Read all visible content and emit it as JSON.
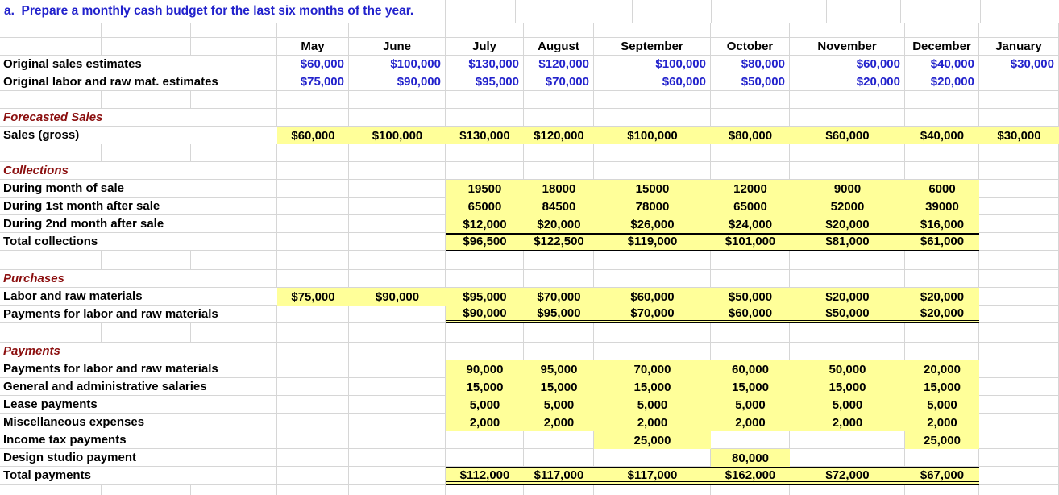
{
  "title": "a.  Prepare a monthly cash budget for the last six months of the year.",
  "months": [
    "May",
    "June",
    "July",
    "August",
    "September",
    "October",
    "November",
    "December",
    "January"
  ],
  "colors": {
    "title_blue": "#2222CC",
    "value_blue": "#2222CC",
    "section_red": "#8B0F0F",
    "highlight_yellow": "#FFFF99",
    "gridline_gray": "#D6D6D6"
  },
  "rows": {
    "original_sales": {
      "label": "Original sales estimates",
      "cells": [
        "$60,000",
        "$100,000",
        "$130,000",
        "$120,000",
        "$100,000",
        "$80,000",
        "$60,000",
        "$40,000",
        "$30,000"
      ]
    },
    "original_labor": {
      "label": "Original labor and raw mat. estimates",
      "cells": [
        "$75,000",
        "$90,000",
        "$95,000",
        "$70,000",
        "$60,000",
        "$50,000",
        "$20,000",
        "$20,000",
        ""
      ]
    },
    "forecasted_sales_header": {
      "label": "Forecasted Sales"
    },
    "sales_gross": {
      "label": "Sales (gross)",
      "cells": [
        "$60,000",
        "$100,000",
        "$130,000",
        "$120,000",
        "$100,000",
        "$80,000",
        "$60,000",
        "$40,000",
        "$30,000"
      ]
    },
    "collections_header": {
      "label": "Collections"
    },
    "during_month": {
      "label": "During month of sale",
      "cells": [
        "",
        "",
        "19500",
        "18000",
        "15000",
        "12000",
        "9000",
        "6000",
        ""
      ]
    },
    "during_1st": {
      "label": "During 1st month after sale",
      "cells": [
        "",
        "",
        "65000",
        "84500",
        "78000",
        "65000",
        "52000",
        "39000",
        ""
      ]
    },
    "during_2nd": {
      "label": "During 2nd month after sale",
      "cells": [
        "",
        "",
        "$12,000",
        "$20,000",
        "$26,000",
        "$24,000",
        "$20,000",
        "$16,000",
        ""
      ]
    },
    "total_collections": {
      "label": "Total collections",
      "cells": [
        "",
        "",
        "$96,500",
        "$122,500",
        "$119,000",
        "$101,000",
        "$81,000",
        "$61,000",
        ""
      ]
    },
    "purchases_header": {
      "label": "Purchases"
    },
    "labor_raw": {
      "label": "Labor and raw materials",
      "cells": [
        "$75,000",
        "$90,000",
        "$95,000",
        "$70,000",
        "$60,000",
        "$50,000",
        "$20,000",
        "$20,000",
        ""
      ]
    },
    "payments_labor_purchases": {
      "label": "Payments for labor and raw materials",
      "cells": [
        "",
        "",
        "$90,000",
        "$95,000",
        "$70,000",
        "$60,000",
        "$50,000",
        "$20,000",
        ""
      ]
    },
    "payments_header": {
      "label": "Payments"
    },
    "payments_labor": {
      "label": "Payments for labor and raw materials",
      "cells": [
        "",
        "",
        "90,000",
        "95,000",
        "70,000",
        "60,000",
        "50,000",
        "20,000",
        ""
      ]
    },
    "ga_salaries": {
      "label": "General and administrative salaries",
      "cells": [
        "",
        "",
        "15,000",
        "15,000",
        "15,000",
        "15,000",
        "15,000",
        "15,000",
        ""
      ]
    },
    "lease": {
      "label": "Lease payments",
      "cells": [
        "",
        "",
        "5,000",
        "5,000",
        "5,000",
        "5,000",
        "5,000",
        "5,000",
        ""
      ]
    },
    "misc": {
      "label": "Miscellaneous expenses",
      "cells": [
        "",
        "",
        "2,000",
        "2,000",
        "2,000",
        "2,000",
        "2,000",
        "2,000",
        ""
      ]
    },
    "income_tax": {
      "label": "Income tax payments",
      "cells": [
        "",
        "",
        "",
        "",
        "25,000",
        "",
        "",
        "25,000",
        ""
      ]
    },
    "design_studio": {
      "label": "Design studio payment",
      "cells": [
        "",
        "",
        "",
        "",
        "",
        "80,000",
        "",
        "",
        ""
      ]
    },
    "total_payments": {
      "label": "Total payments",
      "cells": [
        "",
        "",
        "$112,000",
        "$117,000",
        "$117,000",
        "$162,000",
        "$72,000",
        "$67,000",
        ""
      ]
    }
  }
}
